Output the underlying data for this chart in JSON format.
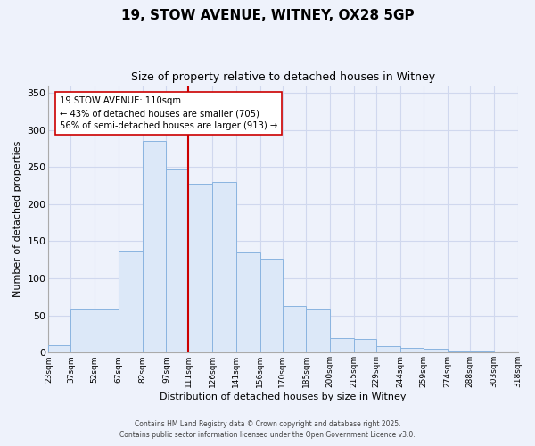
{
  "title_line1": "19, STOW AVENUE, WITNEY, OX28 5GP",
  "title_line2": "Size of property relative to detached houses in Witney",
  "xlabel": "Distribution of detached houses by size in Witney",
  "ylabel": "Number of detached properties",
  "bar_color": "#dce8f8",
  "bar_edge_color": "#8ab4e0",
  "background_color": "#eef2fb",
  "grid_color": "#d0d8ee",
  "vline_x": 111,
  "vline_color": "#cc0000",
  "annotation_title": "19 STOW AVENUE: 110sqm",
  "annotation_line1": "← 43% of detached houses are smaller (705)",
  "annotation_line2": "56% of semi-detached houses are larger (913) →",
  "bin_edges": [
    23,
    37,
    52,
    67,
    82,
    97,
    111,
    126,
    141,
    156,
    170,
    185,
    200,
    215,
    229,
    244,
    259,
    274,
    288,
    303,
    318
  ],
  "bin_labels": [
    "23sqm",
    "37sqm",
    "52sqm",
    "67sqm",
    "82sqm",
    "97sqm",
    "111sqm",
    "126sqm",
    "141sqm",
    "156sqm",
    "170sqm",
    "185sqm",
    "200sqm",
    "215sqm",
    "229sqm",
    "244sqm",
    "259sqm",
    "274sqm",
    "288sqm",
    "303sqm",
    "318sqm"
  ],
  "counts": [
    10,
    59,
    59,
    137,
    285,
    247,
    227,
    230,
    135,
    126,
    63,
    59,
    20,
    18,
    9,
    6,
    5,
    2,
    1,
    0
  ],
  "ylim": [
    0,
    360
  ],
  "yticks": [
    0,
    50,
    100,
    150,
    200,
    250,
    300,
    350
  ],
  "footer_line1": "Contains HM Land Registry data © Crown copyright and database right 2025.",
  "footer_line2": "Contains public sector information licensed under the Open Government Licence v3.0."
}
